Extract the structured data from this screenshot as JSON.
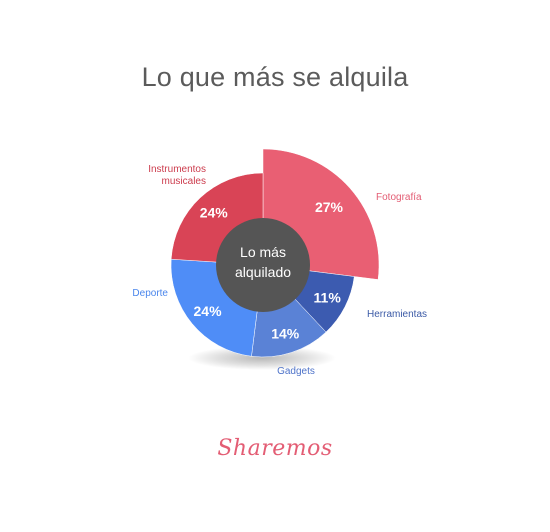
{
  "chart_data": {
    "type": "pie",
    "variant": "donut",
    "title": "Lo que más se alquila",
    "center_label": [
      "Lo más",
      "alquilado"
    ],
    "slices": [
      {
        "label": "Fotografía",
        "value": 27,
        "value_label": "27%",
        "color": "#e95f73",
        "label_color": "#e35d74",
        "exploded": true
      },
      {
        "label": "Herramientas",
        "value": 11,
        "value_label": "11%",
        "color": "#3c5bb0",
        "label_color": "#3b5aa6",
        "exploded": false
      },
      {
        "label": "Gadgets",
        "value": 14,
        "value_label": "14%",
        "color": "#5a82d6",
        "label_color": "#4e73c9",
        "exploded": false
      },
      {
        "label": "Deporte",
        "value": 24,
        "value_label": "24%",
        "color": "#4f8df7",
        "label_color": "#4a86ec",
        "exploded": false
      },
      {
        "label": "Instrumentos musicales",
        "label_lines": [
          "Instrumentos",
          "musicales"
        ],
        "value": 24,
        "value_label": "24%",
        "color": "#d94456",
        "label_color": "#cc3c4d",
        "exploded": false
      }
    ],
    "center_color": "#555555"
  },
  "brand": "Sharemos"
}
